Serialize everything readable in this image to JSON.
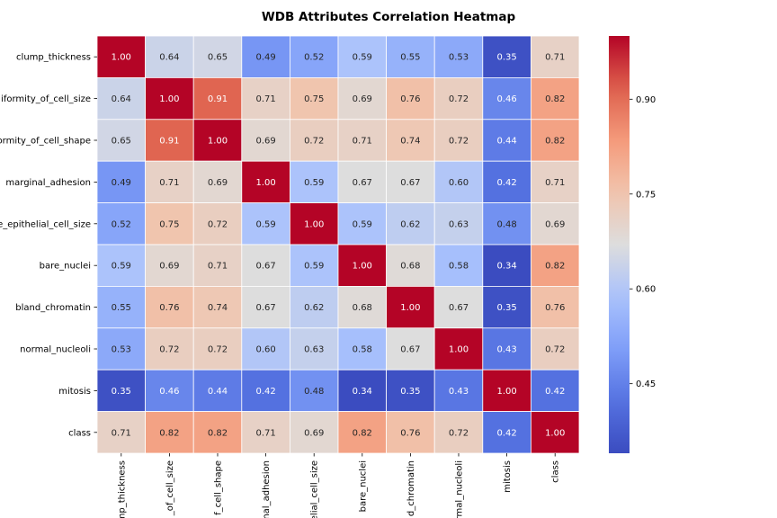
{
  "chart_data": {
    "type": "heatmap",
    "title": "WDB Attributes Correlation Heatmap",
    "xlabel": "",
    "ylabel": "",
    "colormap": "coolwarm",
    "value_range": [
      0.34,
      1.0
    ],
    "colorbar_ticks": [
      "0.45",
      "0.60",
      "0.75",
      "0.90"
    ],
    "row_labels": [
      "clump_thickness",
      "iformity_of_cell_size",
      "ormity_of_cell_shape",
      "marginal_adhesion",
      "e_epithelial_cell_size",
      "bare_nuclei",
      "bland_chromatin",
      "normal_nucleoli",
      "mitosis",
      "class"
    ],
    "col_labels": [
      "ump_thickness",
      "_of_cell_size",
      "f_cell_shape",
      "nal_adhesion",
      "elial_cell_size",
      "bare_nuclei",
      "d_chromatin",
      "rmal_nucleoli",
      "mitosis",
      "class"
    ],
    "values": [
      [
        1.0,
        0.64,
        0.65,
        0.49,
        0.52,
        0.59,
        0.55,
        0.53,
        0.35,
        0.71
      ],
      [
        0.64,
        1.0,
        0.91,
        0.71,
        0.75,
        0.69,
        0.76,
        0.72,
        0.46,
        0.82
      ],
      [
        0.65,
        0.91,
        1.0,
        0.69,
        0.72,
        0.71,
        0.74,
        0.72,
        0.44,
        0.82
      ],
      [
        0.49,
        0.71,
        0.69,
        1.0,
        0.59,
        0.67,
        0.67,
        0.6,
        0.42,
        0.71
      ],
      [
        0.52,
        0.75,
        0.72,
        0.59,
        1.0,
        0.59,
        0.62,
        0.63,
        0.48,
        0.69
      ],
      [
        0.59,
        0.69,
        0.71,
        0.67,
        0.59,
        1.0,
        0.68,
        0.58,
        0.34,
        0.82
      ],
      [
        0.55,
        0.76,
        0.74,
        0.67,
        0.62,
        0.68,
        1.0,
        0.67,
        0.35,
        0.76
      ],
      [
        0.53,
        0.72,
        0.72,
        0.6,
        0.63,
        0.58,
        0.67,
        1.0,
        0.43,
        0.72
      ],
      [
        0.35,
        0.46,
        0.44,
        0.42,
        0.48,
        0.34,
        0.35,
        0.43,
        1.0,
        0.42
      ],
      [
        0.71,
        0.82,
        0.82,
        0.71,
        0.69,
        0.82,
        0.76,
        0.72,
        0.42,
        1.0
      ]
    ]
  }
}
